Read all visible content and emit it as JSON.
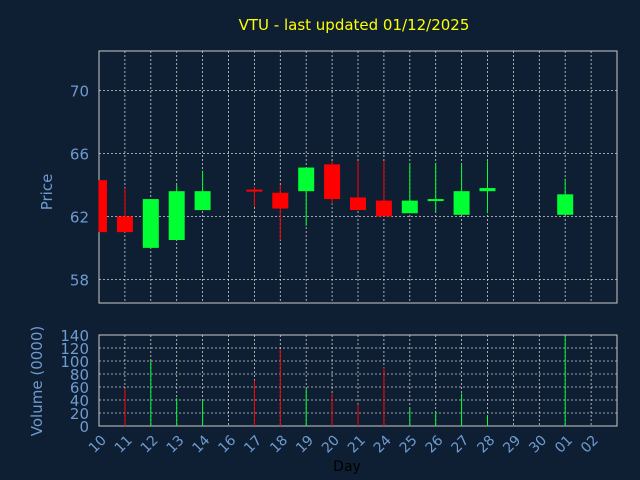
{
  "colors": {
    "background": "#0f1f33",
    "title": "#ffff00",
    "axis_text": "#6f9bd1",
    "frame": "#c8c8c8",
    "grid": "#d0d0d0",
    "up": "#00ff33",
    "down": "#ff0000"
  },
  "chart_data": [
    {
      "type": "candlestick",
      "title": "VTU - last updated 01/12/2025",
      "ylabel": "Price",
      "ylim": [
        56.5,
        72.5
      ],
      "yticks": [
        "58",
        "62",
        "66",
        "70"
      ],
      "grid": true,
      "categories": [
        "10",
        "11",
        "12",
        "13",
        "14",
        "16",
        "17",
        "18",
        "19",
        "20",
        "21",
        "24",
        "25",
        "26",
        "27",
        "28",
        "29",
        "30",
        "01",
        "02"
      ],
      "candles": [
        {
          "day": "10",
          "open": 64.3,
          "close": 61.0,
          "high": 64.3,
          "low": 61.0
        },
        {
          "day": "11",
          "open": 62.0,
          "close": 61.0,
          "high": 63.8,
          "low": 61.0
        },
        {
          "day": "12",
          "open": 60.0,
          "close": 63.1,
          "high": 63.1,
          "low": 60.0
        },
        {
          "day": "13",
          "open": 60.5,
          "close": 63.6,
          "high": 64.0,
          "low": 60.5
        },
        {
          "day": "14",
          "open": 62.4,
          "close": 63.6,
          "high": 64.9,
          "low": 62.4
        },
        {
          "day": "17",
          "open": 63.7,
          "close": 63.6,
          "high": 63.9,
          "low": 62.6
        },
        {
          "day": "18",
          "open": 63.5,
          "close": 62.5,
          "high": 64.0,
          "low": 60.5
        },
        {
          "day": "19",
          "open": 63.6,
          "close": 65.1,
          "high": 65.1,
          "low": 61.4
        },
        {
          "day": "20",
          "open": 65.3,
          "close": 63.1,
          "high": 65.5,
          "low": 62.8
        },
        {
          "day": "21",
          "open": 63.2,
          "close": 62.4,
          "high": 65.5,
          "low": 62.4
        },
        {
          "day": "24",
          "open": 63.0,
          "close": 62.0,
          "high": 65.5,
          "low": 62.0
        },
        {
          "day": "25",
          "open": 62.2,
          "close": 63.0,
          "high": 65.4,
          "low": 62.2
        },
        {
          "day": "26",
          "open": 63.0,
          "close": 63.1,
          "high": 65.4,
          "low": 62.3
        },
        {
          "day": "27",
          "open": 62.1,
          "close": 63.6,
          "high": 65.3,
          "low": 62.1
        },
        {
          "day": "28",
          "open": 63.6,
          "close": 63.8,
          "high": 65.5,
          "low": 62.2
        },
        {
          "day": "01",
          "open": 62.1,
          "close": 63.4,
          "high": 64.4,
          "low": 62.1
        }
      ]
    },
    {
      "type": "bar",
      "ylabel": "Volume (0000)",
      "xlabel": "Day",
      "ylim": [
        0,
        140
      ],
      "yticks": [
        "0",
        "20",
        "40",
        "60",
        "80",
        "100",
        "120",
        "140"
      ],
      "grid": true,
      "categories": [
        "10",
        "11",
        "12",
        "13",
        "14",
        "16",
        "17",
        "18",
        "19",
        "20",
        "21",
        "24",
        "25",
        "26",
        "27",
        "28",
        "29",
        "30",
        "01",
        "02"
      ],
      "volumes": [
        {
          "day": "11",
          "value": 58,
          "direction": "down"
        },
        {
          "day": "12",
          "value": 100,
          "direction": "up"
        },
        {
          "day": "13",
          "value": 43,
          "direction": "up"
        },
        {
          "day": "14",
          "value": 40,
          "direction": "up"
        },
        {
          "day": "17",
          "value": 70,
          "direction": "down"
        },
        {
          "day": "18",
          "value": 118,
          "direction": "down"
        },
        {
          "day": "19",
          "value": 57,
          "direction": "up"
        },
        {
          "day": "20",
          "value": 50,
          "direction": "down"
        },
        {
          "day": "21",
          "value": 33,
          "direction": "down"
        },
        {
          "day": "24",
          "value": 90,
          "direction": "down"
        },
        {
          "day": "25",
          "value": 28,
          "direction": "up"
        },
        {
          "day": "26",
          "value": 22,
          "direction": "up"
        },
        {
          "day": "27",
          "value": 50,
          "direction": "up"
        },
        {
          "day": "28",
          "value": 17,
          "direction": "up"
        },
        {
          "day": "01",
          "value": 138,
          "direction": "up"
        }
      ]
    }
  ]
}
